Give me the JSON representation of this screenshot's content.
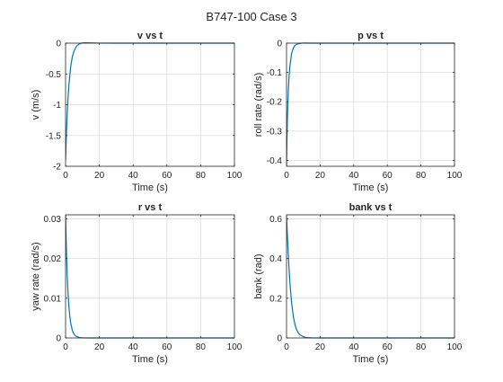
{
  "figure": {
    "title": "B747-100 Case 3",
    "background": "#ffffff",
    "axes_color": "#262626",
    "grid_color": "#dcdcdc",
    "line_color": "#0072bd"
  },
  "chart_data": [
    {
      "type": "line",
      "title": "v vs t",
      "xlabel": "Time (s)",
      "ylabel": "v (m/s)",
      "xlim": [
        0,
        100
      ],
      "ylim": [
        -2,
        0
      ],
      "xticks": [
        0,
        20,
        40,
        60,
        80,
        100
      ],
      "yticks": [
        -2,
        -1.5,
        -1,
        -0.5,
        0
      ],
      "ytick_labels": [
        "-2",
        "-1.5",
        "-1",
        "-0.5",
        "0"
      ],
      "grid": true,
      "series": [
        {
          "x": [
            0,
            0.25,
            0.5,
            1,
            1.5,
            2,
            3,
            4,
            5,
            6,
            7,
            8,
            10,
            12,
            15,
            20,
            30,
            50,
            75,
            100
          ],
          "y": [
            -1.9,
            -1.66,
            -1.46,
            -1.12,
            -0.87,
            -0.67,
            -0.39,
            -0.22,
            -0.13,
            -0.07,
            -0.035,
            -0.015,
            0.004,
            0.006,
            0.004,
            0.001,
            0,
            0,
            0,
            0
          ]
        }
      ]
    },
    {
      "type": "line",
      "title": "p vs t",
      "xlabel": "Time (s)",
      "ylabel": "roll rate (rad/s)",
      "xlim": [
        0,
        100
      ],
      "ylim": [
        -0.42,
        0
      ],
      "xticks": [
        0,
        20,
        40,
        60,
        80,
        100
      ],
      "yticks": [
        -0.4,
        -0.3,
        -0.2,
        -0.1,
        0
      ],
      "ytick_labels": [
        "-0.4",
        "-0.3",
        "-0.2",
        "-0.1",
        "0"
      ],
      "grid": true,
      "series": [
        {
          "x": [
            0,
            0.25,
            0.5,
            1,
            1.5,
            2,
            3,
            4,
            5,
            6,
            8,
            10,
            15,
            20,
            50,
            100
          ],
          "y": [
            -0.42,
            -0.33,
            -0.26,
            -0.17,
            -0.115,
            -0.078,
            -0.036,
            -0.017,
            -0.008,
            -0.004,
            -0.001,
            0.0005,
            0,
            0,
            0,
            0
          ]
        }
      ]
    },
    {
      "type": "line",
      "title": "r vs t",
      "xlabel": "Time (s)",
      "ylabel": "yaw rate (rad/s)",
      "xlim": [
        0,
        100
      ],
      "ylim": [
        0,
        0.031
      ],
      "xticks": [
        0,
        20,
        40,
        60,
        80,
        100
      ],
      "yticks": [
        0,
        0.01,
        0.02,
        0.03
      ],
      "ytick_labels": [
        "0",
        "0.01",
        "0.02",
        "0.03"
      ],
      "grid": true,
      "series": [
        {
          "x": [
            0,
            0.5,
            1,
            1.5,
            2,
            2.5,
            3,
            4,
            5,
            6,
            8,
            10,
            15,
            20,
            50,
            100
          ],
          "y": [
            0.031,
            0.022,
            0.0155,
            0.011,
            0.0078,
            0.0055,
            0.0039,
            0.0019,
            0.00095,
            0.00047,
            0.00012,
            3e-05,
            0,
            0,
            0,
            0
          ]
        }
      ]
    },
    {
      "type": "line",
      "title": "bank vs t",
      "xlabel": "Time (s)",
      "ylabel": "bank (rad)",
      "xlim": [
        0,
        100
      ],
      "ylim": [
        0,
        0.62
      ],
      "xticks": [
        0,
        20,
        40,
        60,
        80,
        100
      ],
      "yticks": [
        0,
        0.2,
        0.4,
        0.6
      ],
      "ytick_labels": [
        "0",
        "0.2",
        "0.4",
        "0.6"
      ],
      "grid": true,
      "series": [
        {
          "x": [
            0,
            0.5,
            1,
            1.5,
            2,
            3,
            4,
            5,
            6,
            7,
            8,
            10,
            12,
            15,
            20,
            50,
            100
          ],
          "y": [
            0.61,
            0.52,
            0.43,
            0.35,
            0.28,
            0.18,
            0.11,
            0.068,
            0.042,
            0.026,
            0.016,
            0.006,
            0.002,
            0.0005,
            0,
            0,
            0
          ]
        }
      ]
    }
  ]
}
